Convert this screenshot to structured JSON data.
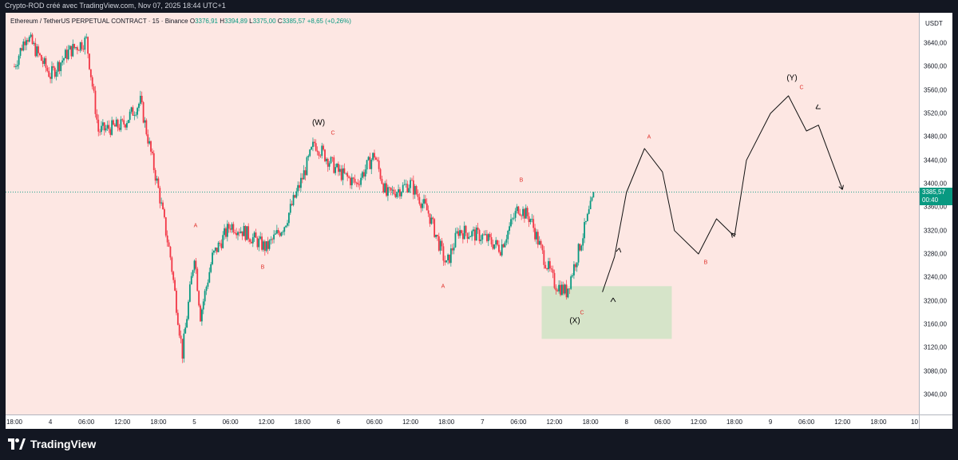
{
  "header": {
    "credit": "Crypto-ROD créé avec TradingView.com, Nov 07, 2025 18:44 UTC+1"
  },
  "legend": {
    "symbol": "Ethereum / TetherUS PERPETUAL CONTRACT · 15 · Binance",
    "o_label": "O",
    "o_value": "3376,91",
    "h_label": "H",
    "h_value": "3394,89",
    "l_label": "L",
    "l_value": "3375,00",
    "c_label": "C",
    "c_value": "3385,57",
    "change": "+8,65 (+0,26%)"
  },
  "yaxis": {
    "unit": "USDT",
    "ticks": [
      "3640,00",
      "3600,00",
      "3560,00",
      "3520,00",
      "3480,00",
      "3440,00",
      "3400,00",
      "3360,00",
      "3320,00",
      "3280,00",
      "3240,00",
      "3200,00",
      "3160,00",
      "3120,00",
      "3080,00",
      "3040,00"
    ]
  },
  "price_tag": {
    "price": "3385,57",
    "countdown": "00:40"
  },
  "xaxis": {
    "ticks": [
      "18:00",
      "4",
      "06:00",
      "12:00",
      "18:00",
      "5",
      "06:00",
      "12:00",
      "18:00",
      "6",
      "06:00",
      "12:00",
      "18:00",
      "7",
      "06:00",
      "12:00",
      "18:00",
      "8",
      "06:00",
      "12:00",
      "18:00",
      "9",
      "06:00",
      "12:00",
      "18:00",
      "10"
    ]
  },
  "annotations": {
    "w_label": "(W)",
    "x_label": "(X)",
    "y_label": "(Y)",
    "a1": "A",
    "b1": "B",
    "c_w": "C",
    "a2": "A",
    "b2": "B",
    "c_x": "C",
    "a3": "A",
    "b3": "B",
    "c_y": "C"
  },
  "brand": {
    "name": "TradingView"
  },
  "colors": {
    "up": "#089981",
    "down": "#f23645",
    "background": "#fde7e3",
    "zone": "#d6e4c9",
    "price_line": "#089981"
  },
  "chart_data": {
    "type": "candlestick",
    "symbol": "ETHUSDT.P",
    "timeframe": "15",
    "ylim": [
      3020,
      3660
    ],
    "price_path": [
      {
        "t": "Nov 3 18:00",
        "close": 3600
      },
      {
        "t": "Nov 3 20:00",
        "close": 3655
      },
      {
        "t": "Nov 4 00:00",
        "close": 3585
      },
      {
        "t": "Nov 4 03:00",
        "close": 3625
      },
      {
        "t": "Nov 4 06:00",
        "close": 3645
      },
      {
        "t": "Nov 4 08:00",
        "close": 3490
      },
      {
        "t": "Nov 4 12:00",
        "close": 3500
      },
      {
        "t": "Nov 4 15:00",
        "close": 3540
      },
      {
        "t": "Nov 4 18:00",
        "close": 3390
      },
      {
        "t": "Nov 4 20:00",
        "close": 3275
      },
      {
        "t": "Nov 4 22:00",
        "close": 3110
      },
      {
        "t": "Nov 5 00:00",
        "close": 3280
      },
      {
        "t": "Nov 5 01:00",
        "close": 3175
      },
      {
        "t": "Nov 5 03:00",
        "close": 3275
      },
      {
        "t": "Nov 5 06:00",
        "close": 3330
      },
      {
        "t": "Nov 5 08:00",
        "close": 3320
      },
      {
        "t": "Nov 5 12:00",
        "close": 3290
      },
      {
        "t": "Nov 5 15:00",
        "close": 3330
      },
      {
        "t": "Nov 5 18:00",
        "close": 3410
      },
      {
        "t": "Nov 5 20:00",
        "close": 3470
      },
      {
        "t": "Nov 6 00:00",
        "close": 3420
      },
      {
        "t": "Nov 6 03:00",
        "close": 3400
      },
      {
        "t": "Nov 6 06:00",
        "close": 3450
      },
      {
        "t": "Nov 6 08:00",
        "close": 3380
      },
      {
        "t": "Nov 6 12:00",
        "close": 3400
      },
      {
        "t": "Nov 6 15:00",
        "close": 3350
      },
      {
        "t": "Nov 6 18:00",
        "close": 3260
      },
      {
        "t": "Nov 6 20:00",
        "close": 3320
      },
      {
        "t": "Nov 7 00:00",
        "close": 3310
      },
      {
        "t": "Nov 7 03:00",
        "close": 3290
      },
      {
        "t": "Nov 7 06:00",
        "close": 3360
      },
      {
        "t": "Nov 7 08:00",
        "close": 3340
      },
      {
        "t": "Nov 7 10:00",
        "close": 3280
      },
      {
        "t": "Nov 7 12:00",
        "close": 3230
      },
      {
        "t": "Nov 7 14:00",
        "close": 3215
      },
      {
        "t": "Nov 7 16:00",
        "close": 3285
      },
      {
        "t": "Nov 7 18:44",
        "close": 3385.57
      }
    ],
    "current_price": 3385.57,
    "support_zone": {
      "from": 3135,
      "to": 3225
    },
    "projection": [
      {
        "t": "Nov 7 20:00",
        "price": 3215
      },
      {
        "t": "Nov 7 22:00",
        "price": 3275
      },
      {
        "t": "Nov 8 00:00",
        "price": 3385
      },
      {
        "t": "Nov 8 03:00",
        "price": 3460
      },
      {
        "t": "Nov 8 06:00",
        "price": 3420
      },
      {
        "t": "Nov 8 08:00",
        "price": 3320
      },
      {
        "t": "Nov 8 12:00",
        "price": 3280
      },
      {
        "t": "Nov 8 15:00",
        "price": 3340
      },
      {
        "t": "Nov 8 18:00",
        "price": 3310
      },
      {
        "t": "Nov 8 20:00",
        "price": 3440
      },
      {
        "t": "Nov 9 00:00",
        "price": 3520
      },
      {
        "t": "Nov 9 03:00",
        "price": 3550
      },
      {
        "t": "Nov 9 06:00",
        "price": 3490
      },
      {
        "t": "Nov 9 08:00",
        "price": 3500
      },
      {
        "t": "Nov 9 12:00",
        "price": 3390
      }
    ]
  }
}
